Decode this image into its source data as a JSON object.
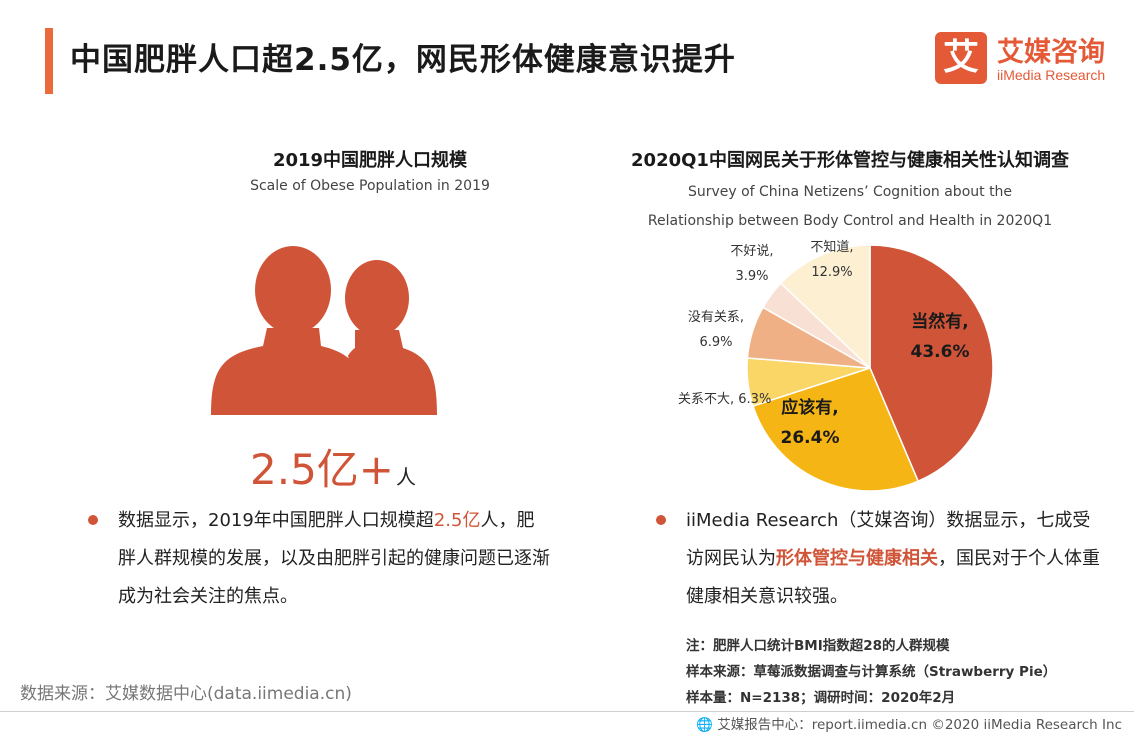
{
  "header": {
    "title": "中国肥胖人口超2.5亿，网民形体健康意识提升",
    "logo_mark": "艾",
    "logo_cn": "艾媒咨询",
    "logo_en": "iiMedia Research"
  },
  "left": {
    "title": "2019中国肥胖人口规模",
    "subtitle": "Scale of Obese Population in 2019",
    "icon": "people-icon",
    "big_number": "2.5亿+",
    "big_unit": "人",
    "para_prefix": "数据显示，2019年中国肥胖人口规模超",
    "para_highlight": "2.5亿",
    "para_suffix": "人，肥胖人群规模的发展，以及由肥胖引起的健康问题已逐渐成为社会关注的焦点。"
  },
  "right": {
    "title": "2020Q1中国网民关于形体管控与健康相关性认知调查",
    "subtitle_line1": "Survey of China Netizens’ Cognition about the",
    "subtitle_line2": "Relationship between Body Control and Health in 2020Q1",
    "para_prefix": "iiMedia Research（艾媒咨询）数据显示，七成受访网民认为",
    "para_highlight": "形体管控与健康相关",
    "para_suffix": "，国民对于个人体重健康相关意识较强。"
  },
  "chart_data": {
    "type": "pie",
    "title": "2020Q1中国网民关于形体管控与健康相关性认知调查",
    "slices": [
      {
        "label": "当然有,",
        "value": 43.6,
        "display": "43.6%",
        "color": "#d05538"
      },
      {
        "label": "应该有,",
        "value": 26.4,
        "display": "26.4%",
        "color": "#f5b514"
      },
      {
        "label": "关系不大,",
        "value": 6.3,
        "display": "6.3%",
        "color": "#fad667"
      },
      {
        "label": "没有关系,",
        "value": 6.9,
        "display": "6.9%",
        "color": "#f0b085"
      },
      {
        "label": "不好说,",
        "value": 3.9,
        "display": "3.9%",
        "color": "#f9e0d4"
      },
      {
        "label": "不知道,",
        "value": 12.9,
        "display": "12.9%",
        "color": "#fdf0d2"
      }
    ]
  },
  "notes": {
    "note": "注：肥胖人口统计BMI指数超28的人群规模",
    "sample_source": "样本来源：草莓派数据调查与计算系统（Strawberry  Pie）",
    "sample_size": "样本量：N=2138；调研时间：2020年2月"
  },
  "source": "数据来源：艾媒数据中心(data.iimedia.cn)",
  "footer": "🌐 艾媒报告中心：report.iimedia.cn  ©2020  iiMedia Research  Inc",
  "colors": {
    "accent": "#ea6a3c",
    "brand": "#e45a37",
    "highlight": "#d05538"
  }
}
